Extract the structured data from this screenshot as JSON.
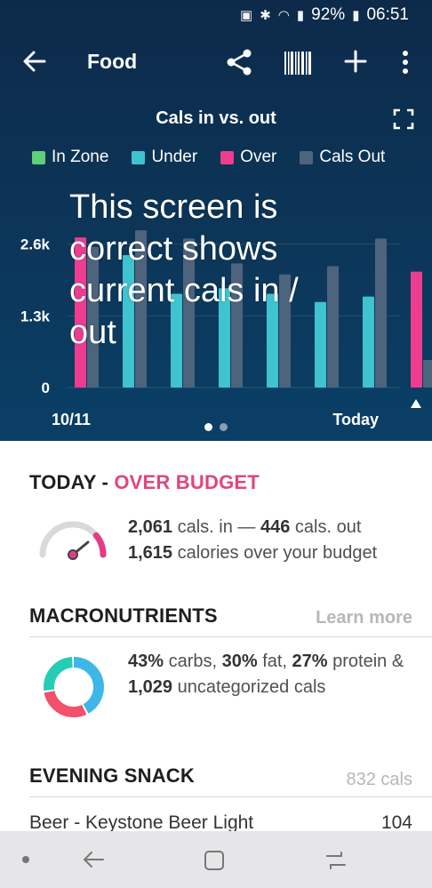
{
  "status": {
    "battery": "92%",
    "time": "06:51"
  },
  "appbar": {
    "title": "Food"
  },
  "chart_header": {
    "title": "Cals in vs. out"
  },
  "legend": [
    {
      "label": "In Zone",
      "color": "#5fd07a"
    },
    {
      "label": "Under",
      "color": "#3ec3cf"
    },
    {
      "label": "Over",
      "color": "#ee3d8f"
    },
    {
      "label": "Cals Out",
      "color": "#4e647c"
    }
  ],
  "chart_data": {
    "type": "bar",
    "categories": [
      "10/11",
      "",
      "",
      "",
      "",
      "",
      "",
      "Today"
    ],
    "series": [
      {
        "name": "In Zone / Under / Over",
        "values": [
          2720,
          2400,
          1700,
          1800,
          1700,
          1550,
          1650,
          2100
        ],
        "status": [
          "over",
          "under",
          "under",
          "under",
          "under",
          "under",
          "under",
          "over"
        ]
      },
      {
        "name": "Cals Out",
        "values": [
          2550,
          2850,
          2700,
          2250,
          2050,
          2200,
          2700,
          500
        ]
      }
    ],
    "y_ticks": [
      "2.6k",
      "1.3k",
      "0"
    ],
    "ylim": [
      0,
      2900
    ],
    "x_start_label": "10/11",
    "x_end_label": "Today",
    "grid": true
  },
  "overlay_text": "This screen is correct shows current cals in / out",
  "today": {
    "heading": "TODAY - ",
    "status": "OVER BUDGET",
    "cals_in": "2,061",
    "cals_in_suffix": " cals. in — ",
    "cals_out": "446",
    "cals_out_suffix": " cals. out",
    "over": "1,615",
    "over_suffix": " calories over your budget",
    "gauge_fraction": 0.78
  },
  "macros": {
    "heading": "MACRONUTRIENTS",
    "link": "Learn more",
    "carbs": "43%",
    "carbs_suffix": " carbs, ",
    "fat": "30%",
    "fat_suffix": " fat, ",
    "protein": "27%",
    "protein_suffix": " protein & ",
    "uncat": "1,029",
    "uncat_suffix": " uncategorized cals",
    "donut": [
      {
        "name": "carbs",
        "fraction": 0.43,
        "color": "#3fb6e8"
      },
      {
        "name": "fat",
        "fraction": 0.3,
        "color": "#f2506c"
      },
      {
        "name": "protein",
        "fraction": 0.27,
        "color": "#26cdb5"
      }
    ]
  },
  "snack": {
    "heading": "EVENING SNACK",
    "total": "832 cals",
    "item_name": "Beer - Keystone Beer Light",
    "item_cals": "104"
  }
}
